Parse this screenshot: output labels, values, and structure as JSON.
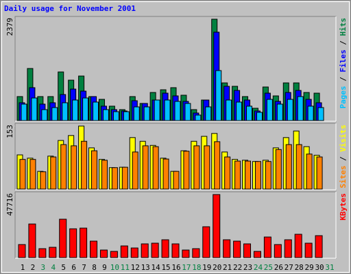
{
  "chart_data": {
    "type": "bar",
    "title": "Daily usage for November 2001",
    "categories": [
      "1",
      "2",
      "3",
      "4",
      "5",
      "6",
      "7",
      "8",
      "9",
      "10",
      "11",
      "12",
      "13",
      "14",
      "15",
      "16",
      "17",
      "18",
      "19",
      "20",
      "21",
      "22",
      "23",
      "24",
      "25",
      "26",
      "27",
      "28",
      "29",
      "30",
      "31"
    ],
    "category_colors": [
      "#000000",
      "#000000",
      "#008040",
      "#008040",
      "#000000",
      "#000000",
      "#000000",
      "#000000",
      "#000000",
      "#008040",
      "#008040",
      "#000000",
      "#000000",
      "#000000",
      "#000000",
      "#000000",
      "#008040",
      "#008040",
      "#000000",
      "#000000",
      "#000000",
      "#000000",
      "#000000",
      "#008040",
      "#008040",
      "#000000",
      "#000000",
      "#000000",
      "#000000",
      "#000000",
      "#008040"
    ],
    "panels": [
      {
        "ylim": [
          0,
          2379
        ],
        "yticks": [
          2379
        ],
        "series": [
          {
            "name": "Hits",
            "color": "#008040",
            "values": [
              563,
              1222,
              563,
              563,
              1141,
              948,
              1045,
              563,
              498,
              338,
              257,
              563,
              402,
              659,
              723,
              772,
              595,
              257,
              482,
              2379,
              884,
              804,
              563,
              289,
              788,
              579,
              884,
              884,
              659,
              643,
              0
            ]
          },
          {
            "name": "Files",
            "color": "#0000ff",
            "values": [
              418,
              772,
              386,
              418,
              611,
              739,
              691,
              563,
              338,
              257,
              225,
              466,
              402,
              482,
              643,
              579,
              450,
              177,
              482,
              2074,
              804,
              707,
              482,
              225,
              643,
              450,
              659,
              707,
              498,
              418,
              0
            ]
          },
          {
            "name": "Pages",
            "color": "#00c0ff",
            "values": [
              386,
              530,
              257,
              305,
              418,
              482,
              530,
              434,
              257,
              209,
              209,
              321,
              321,
              482,
              482,
              450,
              402,
              129,
              321,
              1173,
              482,
              434,
              338,
              193,
              498,
              386,
              498,
              563,
              338,
              305,
              0
            ]
          }
        ]
      },
      {
        "ylim": [
          0,
          153
        ],
        "yticks": [
          153
        ],
        "series": [
          {
            "name": "Visits",
            "color": "#ffff00",
            "values": [
              83,
              75,
              43,
              80,
              118,
              130,
              153,
              100,
              72,
              52,
              53,
              125,
              116,
              106,
              75,
              43,
              93,
              116,
              128,
              135,
              90,
              72,
              70,
              67,
              70,
              100,
              125,
              141,
              103,
              82,
              0
            ]
          },
          {
            "name": "Sites",
            "color": "#ff8000",
            "values": [
              72,
              72,
              42,
              78,
              108,
              105,
              116,
              93,
              70,
              52,
              53,
              90,
              105,
              103,
              73,
              43,
              92,
              105,
              105,
              115,
              78,
              68,
              68,
              67,
              67,
              96,
              108,
              108,
              85,
              78,
              0
            ]
          }
        ]
      },
      {
        "ylim": [
          0,
          47716
        ],
        "yticks": [
          47716
        ],
        "series": [
          {
            "name": "KBytes",
            "color": "#ff0000",
            "values": [
              9855,
              25414,
              6743,
              7780,
              29045,
              21784,
              22302,
              12448,
              5705,
              4668,
              8817,
              7261,
              10373,
              10892,
              13485,
              10373,
              5705,
              6743,
              23339,
              47716,
              13485,
              12448,
              10373,
              4668,
              15560,
              9855,
              13485,
              17635,
              10892,
              16597,
              0
            ]
          }
        ]
      }
    ]
  }
}
